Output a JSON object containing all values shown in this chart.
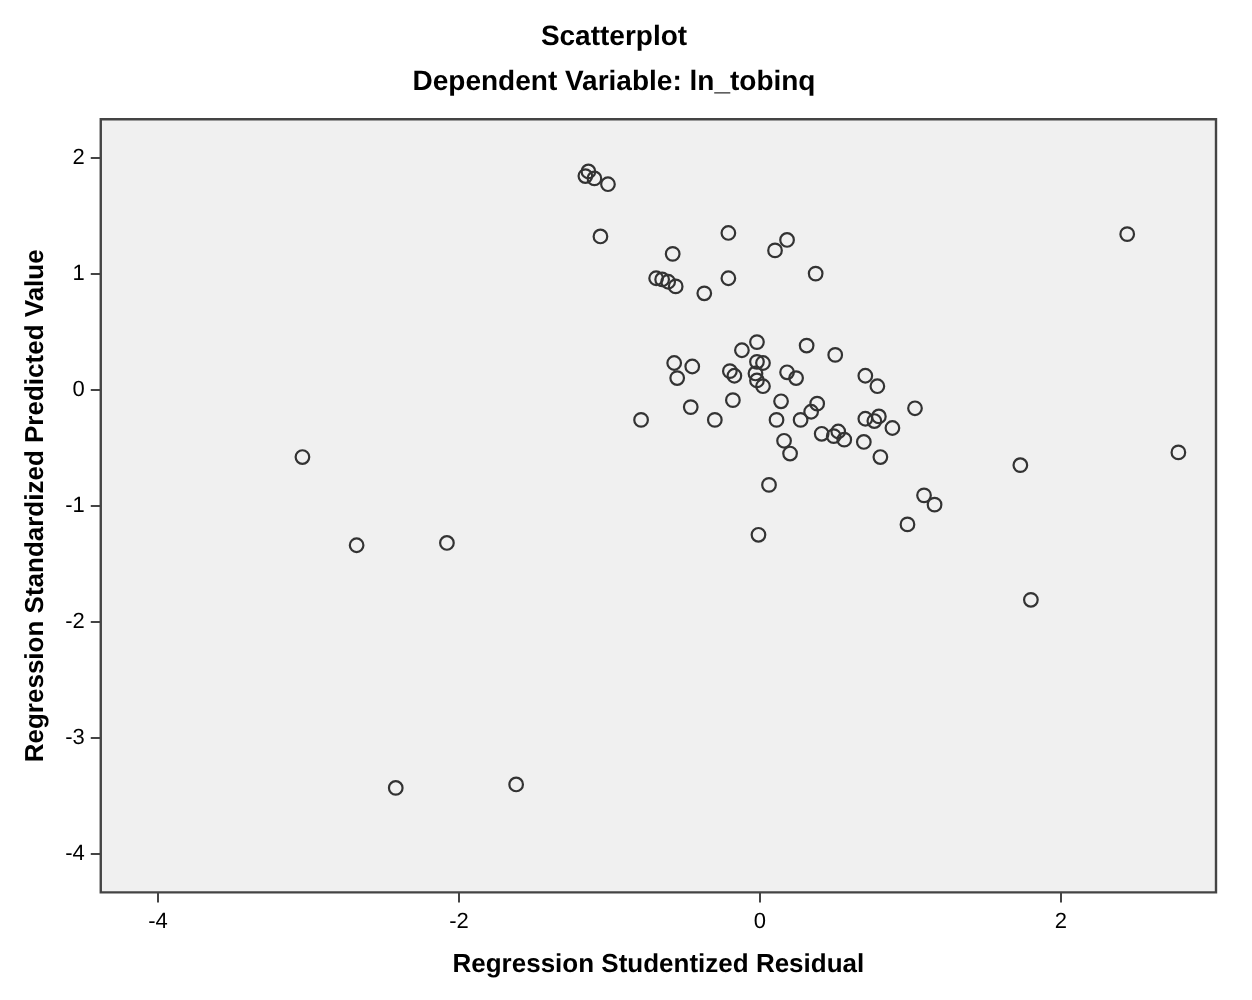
{
  "chart_data": {
    "type": "scatter",
    "title": "Scatterplot",
    "subtitle": "Dependent Variable: ln_tobinq",
    "xlabel": "Regression Studentized Residual",
    "ylabel": "Regression Standardized Predicted Value",
    "xlim": [
      -4.38,
      3.03
    ],
    "ylim": [
      -4.33,
      2.33
    ],
    "xticks": [
      -4,
      -2,
      0,
      2
    ],
    "yticks": [
      -4,
      -3,
      -2,
      -1,
      0,
      1,
      2
    ],
    "legend": false,
    "marker": "circle",
    "series": [
      {
        "color": "#333333",
        "x": [
          -1.14,
          -1.16,
          -1.1,
          -1.01,
          -1.06,
          -0.21,
          0.1,
          0.18,
          -0.58,
          -0.69,
          -0.65,
          -0.61,
          -0.56,
          -0.37,
          -0.21,
          0.37,
          2.44,
          -0.02,
          -0.12,
          0.31,
          0.5,
          -0.57,
          -0.45,
          -0.55,
          -0.2,
          -0.17,
          -0.02,
          0.02,
          -0.03,
          -0.02,
          0.02,
          0.18,
          0.24,
          0.7,
          0.78,
          -0.18,
          -0.46,
          -0.3,
          -0.79,
          0.14,
          0.11,
          0.27,
          0.34,
          0.38,
          0.16,
          0.2,
          0.41,
          0.49,
          0.52,
          0.56,
          0.7,
          0.76,
          0.79,
          0.88,
          1.03,
          0.69,
          0.8,
          0.06,
          -0.01,
          1.09,
          1.16,
          0.98,
          1.73,
          2.78,
          1.8,
          -3.04,
          -2.68,
          -2.08,
          -2.42,
          -1.62
        ],
        "values": [
          1.88,
          1.84,
          1.82,
          1.77,
          1.32,
          1.35,
          1.2,
          1.29,
          1.17,
          0.96,
          0.95,
          0.93,
          0.89,
          0.83,
          0.96,
          1.0,
          1.34,
          0.41,
          0.34,
          0.38,
          0.3,
          0.23,
          0.2,
          0.1,
          0.16,
          0.12,
          0.24,
          0.23,
          0.14,
          0.08,
          0.03,
          0.15,
          0.1,
          0.12,
          0.03,
          -0.09,
          -0.15,
          -0.26,
          -0.26,
          -0.1,
          -0.26,
          -0.26,
          -0.19,
          -0.12,
          -0.44,
          -0.55,
          -0.38,
          -0.4,
          -0.36,
          -0.43,
          -0.25,
          -0.27,
          -0.23,
          -0.33,
          -0.16,
          -0.45,
          -0.58,
          -0.82,
          -1.25,
          -0.91,
          -0.99,
          -1.16,
          -0.65,
          -0.54,
          -1.81,
          -0.58,
          -1.34,
          -1.32,
          -3.43,
          -3.4
        ]
      }
    ]
  }
}
